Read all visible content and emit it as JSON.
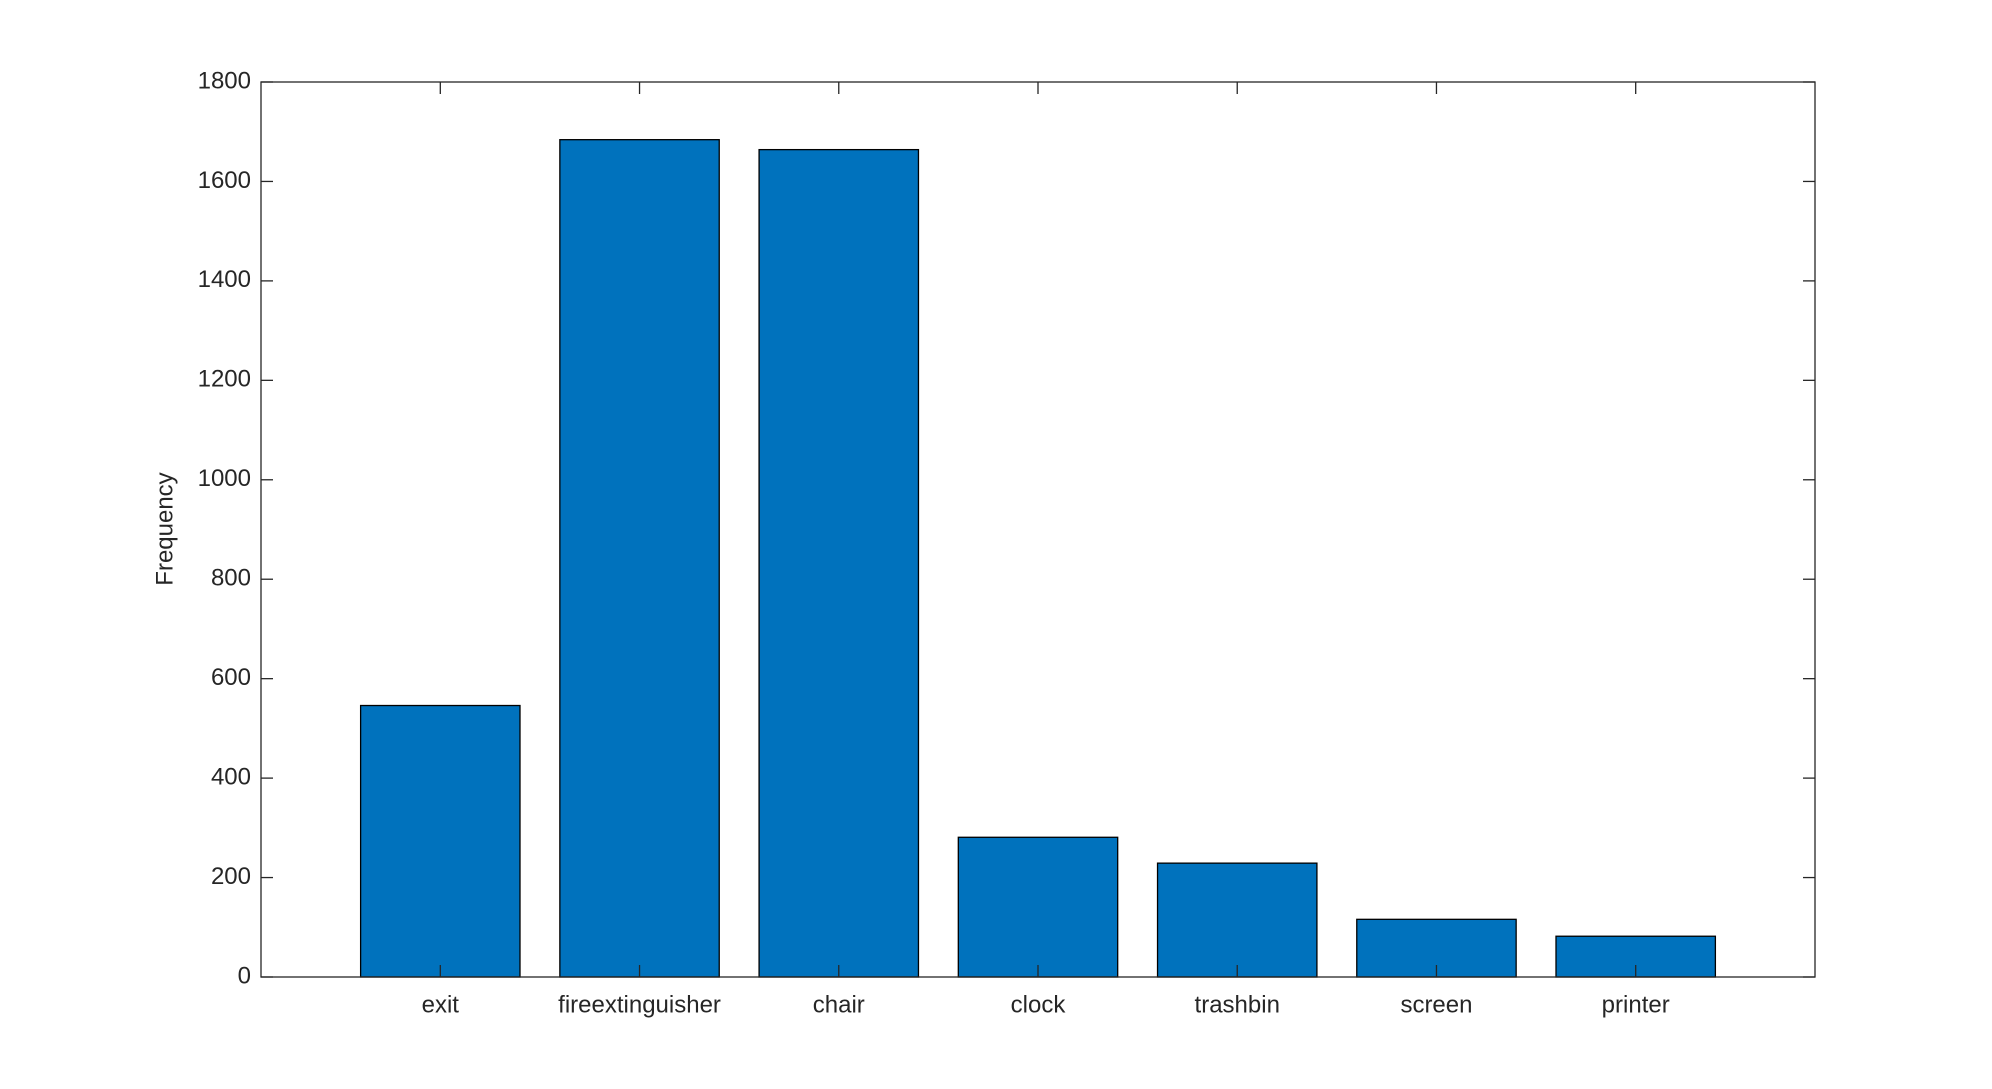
{
  "chart_data": {
    "type": "bar",
    "ylabel": "Frequency",
    "categories": [
      "exit",
      "fireextinguisher",
      "chair",
      "clock",
      "trashbin",
      "screen",
      "printer"
    ],
    "values": [
      546,
      1684,
      1664,
      281,
      229,
      116,
      82
    ],
    "color": "#0072bd",
    "ylim": [
      0,
      1800
    ],
    "yticks": [
      0,
      200,
      400,
      600,
      800,
      1000,
      1200,
      1400,
      1600,
      1800
    ],
    "grid": false
  }
}
